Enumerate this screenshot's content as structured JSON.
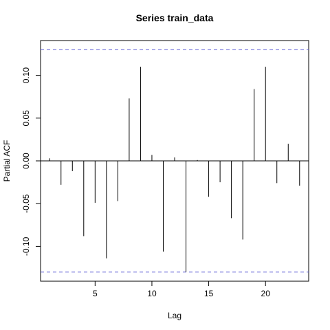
{
  "chart_data": {
    "type": "bar",
    "title": "Series  train_data",
    "xlabel": "Lag",
    "ylabel": "Partial ACF",
    "xlim": [
      0.2,
      23.8
    ],
    "ylim": [
      -0.13,
      0.13
    ],
    "x_ticks": [
      "5",
      "10",
      "15",
      "20"
    ],
    "y_ticks": [
      "-0.10",
      "-0.05",
      "0.00",
      "0.05",
      "0.10"
    ],
    "confidence_bound": 0.13,
    "confidence_color": "#5b5bd6",
    "lags": [
      1,
      2,
      3,
      4,
      5,
      6,
      7,
      8,
      9,
      10,
      11,
      12,
      13,
      14,
      15,
      16,
      17,
      18,
      19,
      20,
      21,
      22,
      23
    ],
    "values": [
      0.003,
      -0.028,
      -0.012,
      -0.088,
      -0.049,
      -0.114,
      -0.047,
      0.073,
      0.11,
      0.007,
      -0.106,
      0.004,
      -0.13,
      0.001,
      -0.042,
      -0.025,
      -0.067,
      -0.092,
      0.084,
      0.11,
      -0.026,
      0.02,
      -0.029
    ]
  }
}
